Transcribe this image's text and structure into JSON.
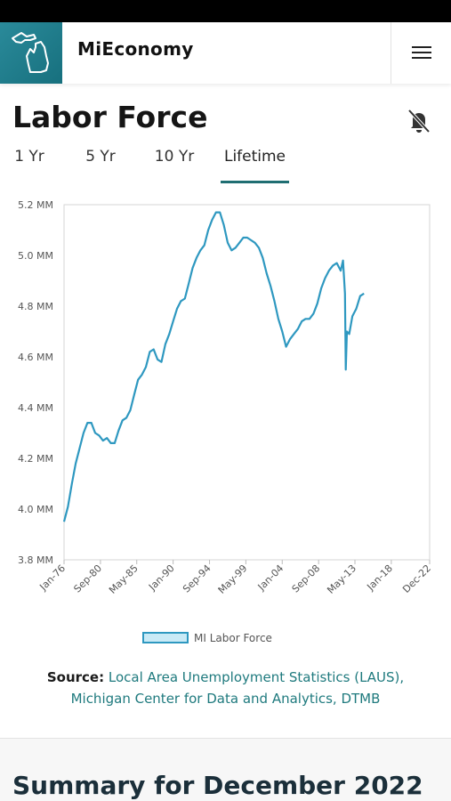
{
  "header": {
    "app_name": "MiEconomy",
    "logo_icon": "michigan-map-icon",
    "menu_icon": "hamburger-menu-icon"
  },
  "page": {
    "title": "Labor Force",
    "notification_icon": "bell-off-icon"
  },
  "tabs": [
    {
      "label": "1 Yr",
      "active": false
    },
    {
      "label": "5 Yr",
      "active": false
    },
    {
      "label": "10 Yr",
      "active": false
    },
    {
      "label": "Lifetime",
      "active": true
    }
  ],
  "colors": {
    "accent": "#1f6e72",
    "line": "#2e98c0",
    "logo_bg": "#17707e"
  },
  "chart_data": {
    "type": "line",
    "ylim": [
      3.8,
      5.2
    ],
    "y_ticks": [
      "3.8 MM",
      "4.0 MM",
      "4.2 MM",
      "4.4 MM",
      "4.6 MM",
      "4.8 MM",
      "5.0 MM",
      "5.2 MM"
    ],
    "y_tick_values": [
      3.8,
      4.0,
      4.2,
      4.4,
      4.6,
      4.8,
      5.0,
      5.2
    ],
    "x_ticks": [
      "Jan-76",
      "Sep-80",
      "May-85",
      "Jan-90",
      "Sep-94",
      "May-99",
      "Jan-04",
      "Sep-08",
      "May-13",
      "Jan-18",
      "Dec-22"
    ],
    "x_tick_years": [
      1976.0,
      1980.67,
      1985.33,
      1990.0,
      1994.67,
      1999.33,
      2004.0,
      2008.67,
      2013.33,
      2018.0,
      2022.92
    ],
    "xlim": [
      1976.0,
      2022.92
    ],
    "grid": false,
    "legend": "bottom",
    "series": [
      {
        "name": "MI Labor Force",
        "points": [
          [
            1976.0,
            3.95
          ],
          [
            1976.5,
            4.01
          ],
          [
            1977.0,
            4.1
          ],
          [
            1977.5,
            4.18
          ],
          [
            1978.0,
            4.24
          ],
          [
            1978.5,
            4.3
          ],
          [
            1979.0,
            4.34
          ],
          [
            1979.5,
            4.34
          ],
          [
            1980.0,
            4.3
          ],
          [
            1980.5,
            4.29
          ],
          [
            1981.0,
            4.27
          ],
          [
            1981.5,
            4.28
          ],
          [
            1982.0,
            4.26
          ],
          [
            1982.5,
            4.26
          ],
          [
            1983.0,
            4.31
          ],
          [
            1983.5,
            4.35
          ],
          [
            1984.0,
            4.36
          ],
          [
            1984.5,
            4.39
          ],
          [
            1985.0,
            4.45
          ],
          [
            1985.5,
            4.51
          ],
          [
            1986.0,
            4.53
          ],
          [
            1986.5,
            4.56
          ],
          [
            1987.0,
            4.62
          ],
          [
            1987.5,
            4.63
          ],
          [
            1988.0,
            4.59
          ],
          [
            1988.5,
            4.58
          ],
          [
            1989.0,
            4.65
          ],
          [
            1989.5,
            4.69
          ],
          [
            1990.0,
            4.74
          ],
          [
            1990.5,
            4.79
          ],
          [
            1991.0,
            4.82
          ],
          [
            1991.5,
            4.83
          ],
          [
            1992.0,
            4.89
          ],
          [
            1992.5,
            4.95
          ],
          [
            1993.0,
            4.99
          ],
          [
            1993.5,
            5.02
          ],
          [
            1994.0,
            5.04
          ],
          [
            1994.5,
            5.1
          ],
          [
            1995.0,
            5.14
          ],
          [
            1995.5,
            5.17
          ],
          [
            1996.0,
            5.17
          ],
          [
            1996.5,
            5.12
          ],
          [
            1997.0,
            5.05
          ],
          [
            1997.5,
            5.02
          ],
          [
            1998.0,
            5.03
          ],
          [
            1998.5,
            5.05
          ],
          [
            1999.0,
            5.07
          ],
          [
            1999.5,
            5.07
          ],
          [
            2000.0,
            5.06
          ],
          [
            2000.5,
            5.05
          ],
          [
            2001.0,
            5.03
          ],
          [
            2001.5,
            4.99
          ],
          [
            2002.0,
            4.93
          ],
          [
            2002.5,
            4.88
          ],
          [
            2003.0,
            4.82
          ],
          [
            2003.5,
            4.75
          ],
          [
            2004.0,
            4.7
          ],
          [
            2004.5,
            4.64
          ],
          [
            2005.0,
            4.67
          ],
          [
            2005.5,
            4.69
          ],
          [
            2006.0,
            4.71
          ],
          [
            2006.5,
            4.74
          ],
          [
            2007.0,
            4.75
          ],
          [
            2007.5,
            4.75
          ],
          [
            2008.0,
            4.77
          ],
          [
            2008.5,
            4.81
          ],
          [
            2009.0,
            4.87
          ],
          [
            2009.5,
            4.91
          ],
          [
            2010.0,
            4.94
          ],
          [
            2010.5,
            4.96
          ],
          [
            2011.0,
            4.97
          ],
          [
            2011.5,
            4.94
          ],
          [
            2011.8,
            4.98
          ],
          [
            2012.05,
            4.85
          ],
          [
            2012.15,
            4.55
          ],
          [
            2012.3,
            4.7
          ],
          [
            2012.6,
            4.69
          ],
          [
            2013.0,
            4.76
          ],
          [
            2013.5,
            4.79
          ],
          [
            2014.0,
            4.84
          ],
          [
            2014.5,
            4.85
          ]
        ]
      }
    ]
  },
  "source": {
    "label": "Source:",
    "text": "Local Area Unemployment Statistics (LAUS), Michigan Center for Data and Analytics, DTMB"
  },
  "summary": {
    "title": "Summary for December 2022"
  }
}
